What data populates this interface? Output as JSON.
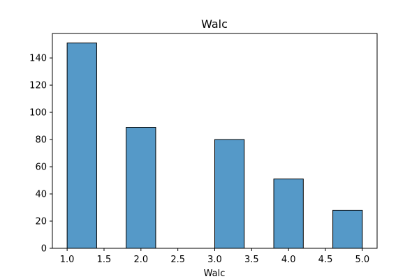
{
  "chart_data": {
    "type": "bar",
    "title": "Walc",
    "xlabel": "Walc",
    "ylabel": "",
    "bins": [
      {
        "x0": 1.0,
        "x1": 1.4,
        "count": 151
      },
      {
        "x0": 1.4,
        "x1": 1.8,
        "count": 0
      },
      {
        "x0": 1.8,
        "x1": 2.2,
        "count": 89
      },
      {
        "x0": 2.2,
        "x1": 2.6,
        "count": 0
      },
      {
        "x0": 2.6,
        "x1": 3.0,
        "count": 0
      },
      {
        "x0": 3.0,
        "x1": 3.4,
        "count": 80
      },
      {
        "x0": 3.4,
        "x1": 3.8,
        "count": 0
      },
      {
        "x0": 3.8,
        "x1": 4.2,
        "count": 51
      },
      {
        "x0": 4.2,
        "x1": 4.6,
        "count": 0
      },
      {
        "x0": 4.6,
        "x1": 5.0,
        "count": 28
      }
    ],
    "xlim": [
      0.8,
      5.2
    ],
    "ylim": [
      0,
      158
    ],
    "xticks": [
      "1.0",
      "1.5",
      "2.0",
      "2.5",
      "3.0",
      "3.5",
      "4.0",
      "4.5",
      "5.0"
    ],
    "yticks": [
      "0",
      "20",
      "40",
      "60",
      "80",
      "100",
      "120",
      "140"
    ],
    "grid": false,
    "colors": {
      "bar_fill": "#5599c8",
      "bar_edge": "#000000"
    }
  }
}
